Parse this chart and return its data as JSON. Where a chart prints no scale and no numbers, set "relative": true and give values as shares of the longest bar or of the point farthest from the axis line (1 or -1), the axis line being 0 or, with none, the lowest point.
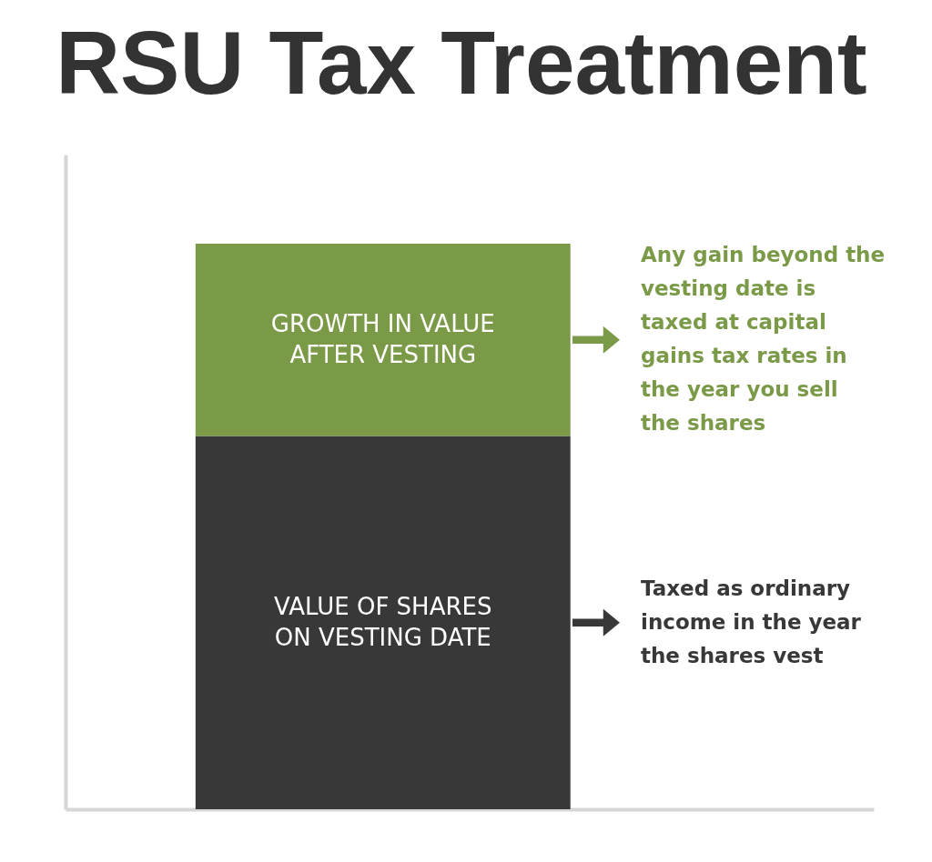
{
  "chart_data": {
    "type": "bar",
    "title": "RSU Tax Treatment",
    "categories": [
      null
    ],
    "stacked": true,
    "relative": true,
    "series": [
      {
        "name": "VALUE OF SHARES ON VESTING DATE",
        "color": "#383838",
        "values": [
          0.66
        ]
      },
      {
        "name": "GROWTH IN VALUE AFTER VESTING",
        "color": "#7a9a48",
        "values": [
          0.34
        ]
      }
    ],
    "annotations": [
      "Any gain beyond the vesting date is taxed at capital gains tax rates in the year you sell the shares",
      "Taxed as ordinary income in the year the shares vest"
    ]
  }
}
